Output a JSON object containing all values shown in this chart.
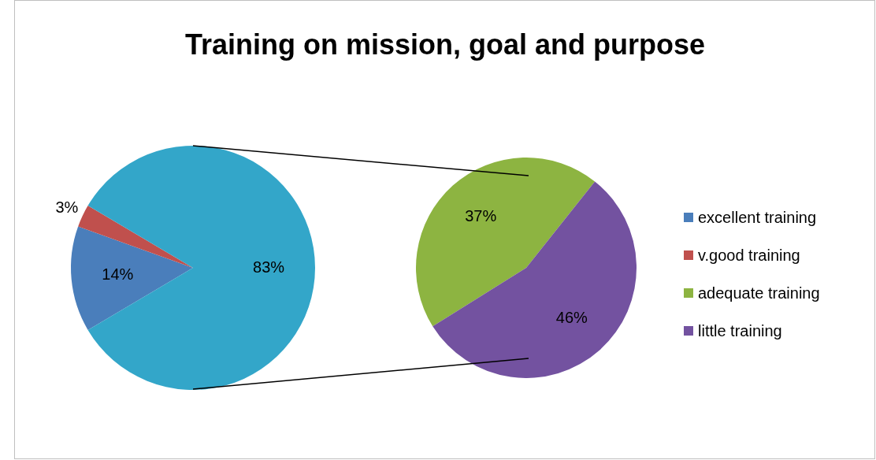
{
  "chart_data": [
    {
      "type": "pie",
      "title": "Training on mission, goal and purpose",
      "categories": [
        "excellent training",
        "v.good training",
        null
      ],
      "values": [
        14,
        3,
        83
      ],
      "colors": [
        "#4a7ebb",
        "#c0504d",
        "#33a6c9"
      ],
      "value_labels": [
        "14%",
        "3%",
        "83%"
      ],
      "legend": "right"
    },
    {
      "type": "pie",
      "categories": [
        "adequate training",
        "little training"
      ],
      "values": [
        37,
        46
      ],
      "colors": [
        "#8db441",
        "#7352a0"
      ],
      "value_labels": [
        "37%",
        "46%"
      ],
      "legend": "right"
    }
  ]
}
